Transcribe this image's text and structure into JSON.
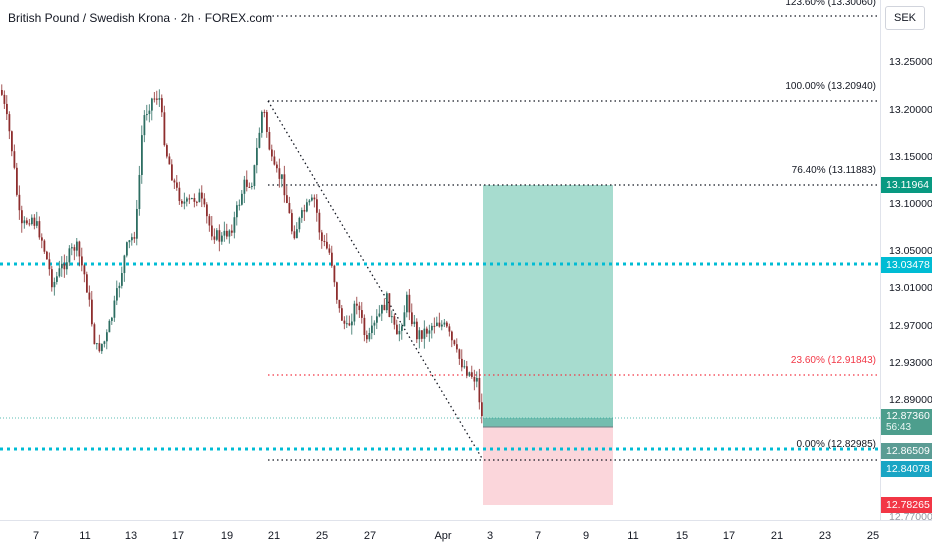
{
  "header": {
    "title": "British Pound / Swedish Krona · 2h · FOREX.com"
  },
  "price_axis": {
    "currency": "SEK",
    "ticks": [
      "13.25000",
      "13.20000",
      "13.15000",
      "13.10000",
      "13.05000",
      "13.01000",
      "12.97000",
      "12.93000",
      "12.89000"
    ],
    "badges": {
      "tp": "13.11964",
      "level": "13.03478",
      "current": "12.87360",
      "countdown": "56:43",
      "entry": "12.86509",
      "level2": "12.84078",
      "stop": "12.78265"
    },
    "partial_bottom": "12.77000"
  },
  "time_axis": {
    "labels": [
      "7",
      "11",
      "13",
      "17",
      "19",
      "21",
      "25",
      "27",
      "Apr",
      "3",
      "7",
      "9",
      "11",
      "15",
      "17",
      "21",
      "23",
      "25"
    ]
  },
  "fib": {
    "labels": {
      "f1236": "123.60% (13.30060)",
      "f100": "100.00% (13.20940)",
      "f764": "76.40% (13.11883)",
      "f236": "23.60% (12.91843)",
      "f0": "0.00% (12.82985)"
    }
  },
  "colors": {
    "up": "#26a69a",
    "down": "#ef5350",
    "candle_dark": "#2d6e62",
    "candle_red": "#8e2e2e",
    "teal_badge": "#089981",
    "cyan": "#00bcd4",
    "red_badge": "#f23645",
    "profit_zone": "#a7dccf",
    "loss_zone": "#fbd6db",
    "fib_red": "#f23645"
  }
}
